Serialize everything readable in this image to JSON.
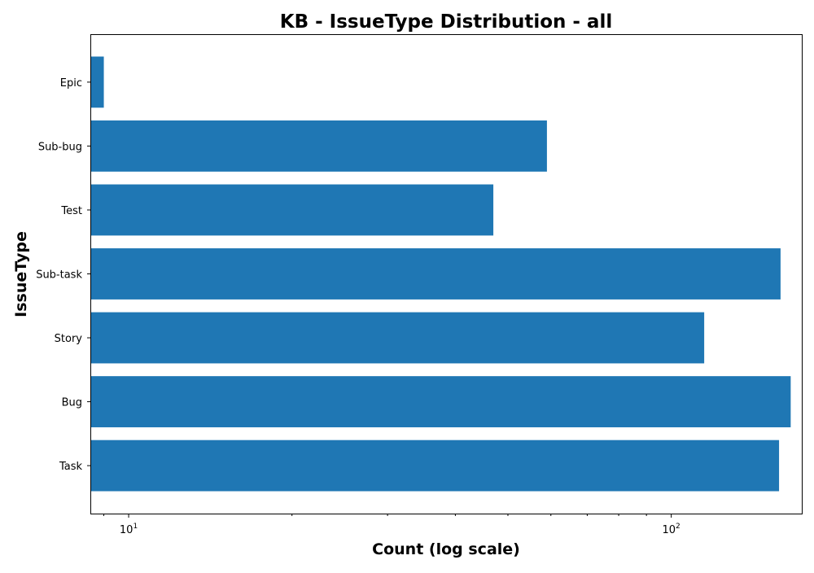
{
  "chart_data": {
    "type": "bar",
    "orientation": "horizontal",
    "title": "KB - IssueType Distribution - all",
    "xlabel": "Count (log scale)",
    "ylabel": "IssueType",
    "xscale": "log",
    "xlim": [
      8.5,
      174
    ],
    "categories": [
      "Epic",
      "Sub-bug",
      "Test",
      "Sub-task",
      "Story",
      "Bug",
      "Task"
    ],
    "values": [
      9,
      59,
      47,
      159,
      115,
      166,
      158
    ],
    "x_ticks": [
      {
        "value": 10,
        "base": "10",
        "exponent": "1"
      },
      {
        "value": 100,
        "base": "10",
        "exponent": "2"
      }
    ],
    "grid": false,
    "bar_color": "#1f77b4"
  }
}
